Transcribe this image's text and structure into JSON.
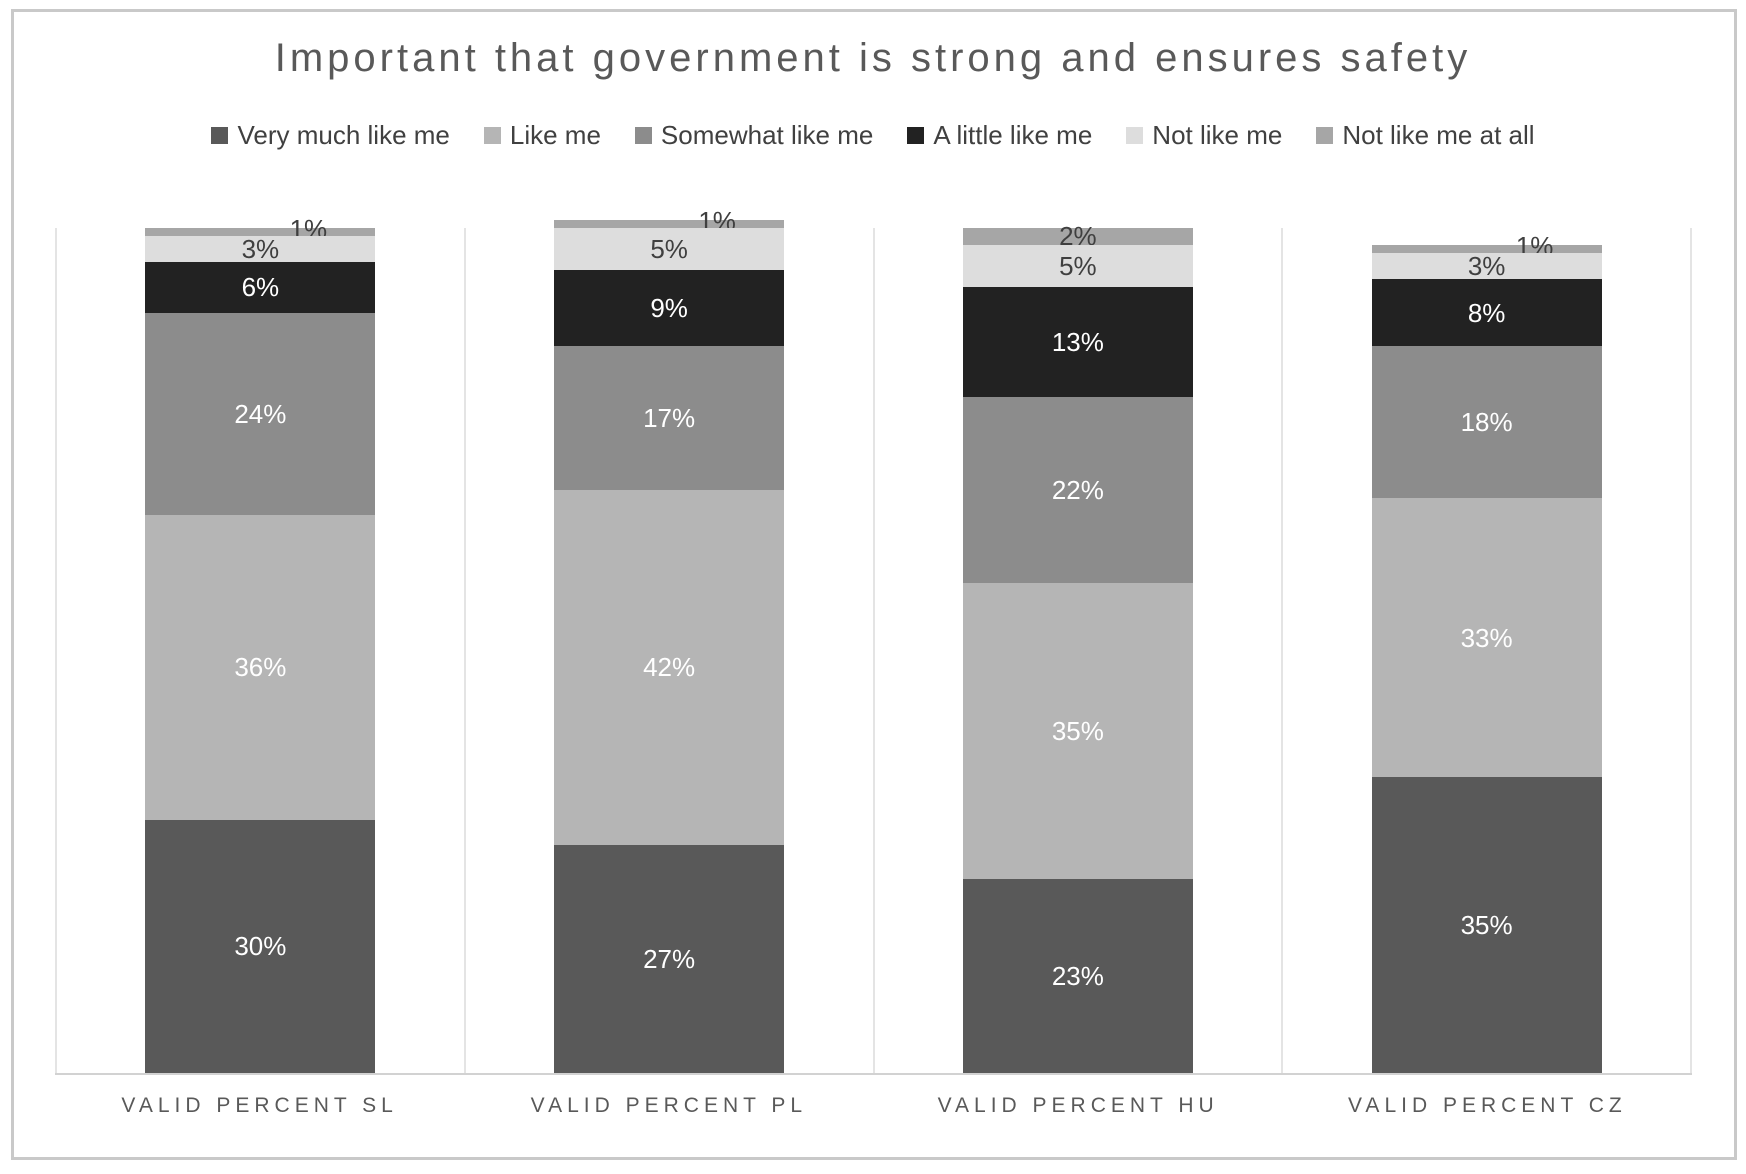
{
  "chart_data": {
    "type": "bar",
    "stacked": true,
    "orientation": "vertical",
    "title": "Important that government is strong and ensures safety",
    "legend_position": "top",
    "grid": "vertical category separators, bottom axis line only",
    "ylim": [
      0,
      100
    ],
    "value_suffix": "%",
    "categories": [
      "VALID PERCENT SL",
      "VALID PERCENT PL",
      "VALID PERCENT HU",
      "VALID PERCENT CZ"
    ],
    "series": [
      {
        "name": "Very much like me",
        "color": "#595959",
        "label_color": "#ffffff",
        "values": [
          30,
          27,
          23,
          35
        ]
      },
      {
        "name": "Like me",
        "color": "#b5b5b5",
        "label_color": "#ffffff",
        "values": [
          36,
          42,
          35,
          33
        ]
      },
      {
        "name": "Somewhat like me",
        "color": "#8c8c8c",
        "label_color": "#ffffff",
        "values": [
          24,
          17,
          22,
          18
        ]
      },
      {
        "name": "A little like me",
        "color": "#222222",
        "label_color": "#ffffff",
        "values": [
          6,
          9,
          13,
          8
        ]
      },
      {
        "name": "Not like me",
        "color": "#dddddd",
        "label_color": "#3f3f3f",
        "values": [
          3,
          5,
          5,
          3
        ]
      },
      {
        "name": "Not like me at all",
        "color": "#a6a6a6",
        "label_color": "#3f3f3f",
        "values": [
          1,
          1,
          2,
          1
        ]
      }
    ]
  }
}
